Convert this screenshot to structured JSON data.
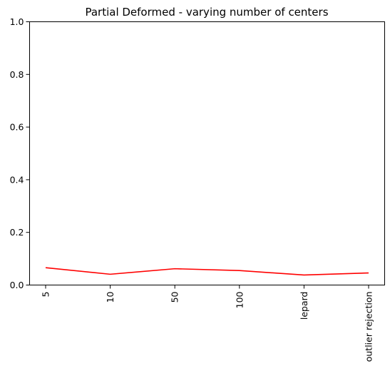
{
  "chart_data": {
    "type": "line",
    "title": "Partial Deformed - varying number of centers",
    "xlabel": "",
    "ylabel": "",
    "categories": [
      "5",
      "10",
      "50",
      "100",
      "lepard",
      "outlier rejection"
    ],
    "series": [
      {
        "values": [
          0.066,
          0.041,
          0.062,
          0.055,
          0.038,
          0.046
        ],
        "color": "#ff0000"
      }
    ],
    "ylim": [
      0,
      1.0
    ],
    "yticks": [
      "0.0",
      "0.2",
      "0.4",
      "0.6",
      "0.8",
      "1.0"
    ],
    "grid": false,
    "legend": "none"
  }
}
